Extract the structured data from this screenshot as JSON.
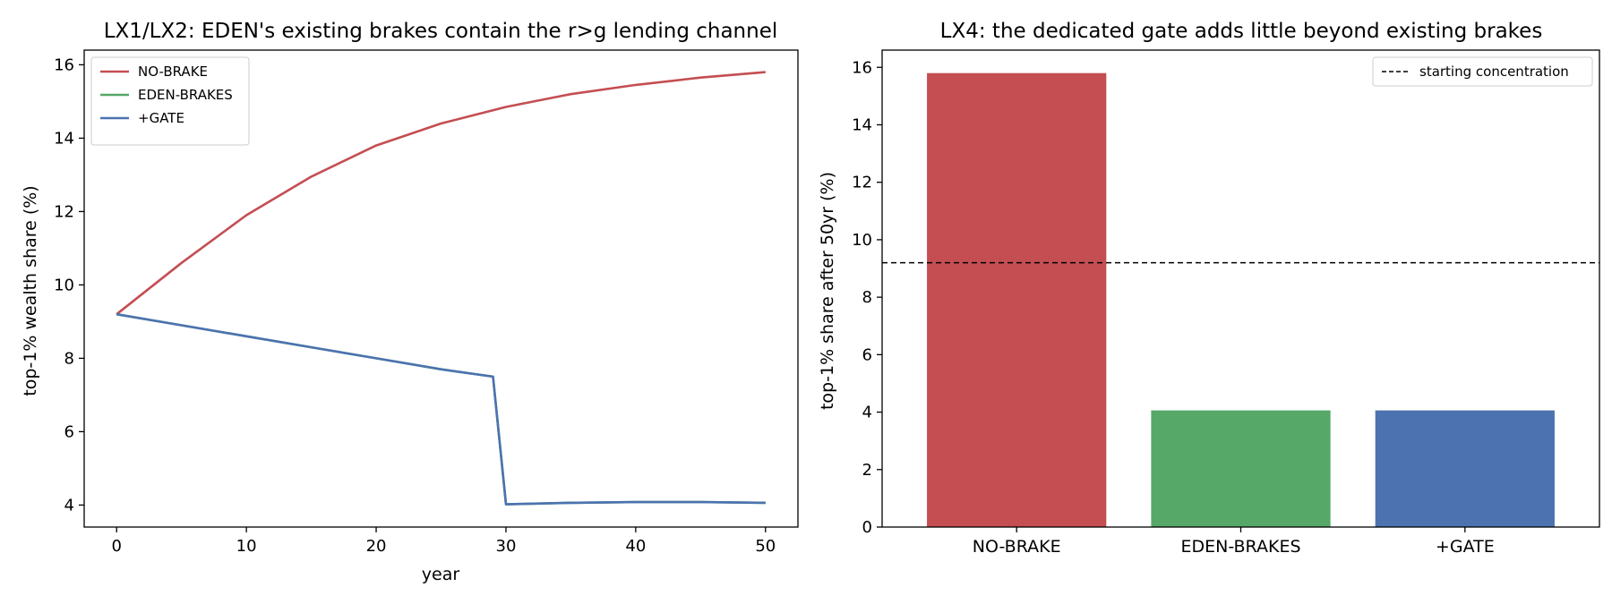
{
  "chart_data": [
    {
      "type": "line",
      "title": "LX1/LX2: EDEN's existing brakes contain the r>g lending channel",
      "xlabel": "year",
      "ylabel": "top-1% wealth share (%)",
      "xlim": [
        -2.5,
        52.5
      ],
      "ylim": [
        3.4,
        16.4
      ],
      "xticks": [
        0,
        10,
        20,
        30,
        40,
        50
      ],
      "yticks": [
        4,
        6,
        8,
        10,
        12,
        14,
        16
      ],
      "legend_position": "upper-left",
      "grid": false,
      "series": [
        {
          "name": "NO-BRAKE",
          "color": "#c44e52",
          "x": [
            0,
            5,
            10,
            15,
            20,
            25,
            30,
            35,
            40,
            45,
            50
          ],
          "y": [
            9.2,
            10.6,
            11.9,
            12.95,
            13.8,
            14.4,
            14.85,
            15.2,
            15.45,
            15.65,
            15.8
          ]
        },
        {
          "name": "EDEN-BRAKES",
          "color": "#55a868",
          "x": [
            0,
            5,
            10,
            15,
            20,
            25,
            29,
            30,
            35,
            40,
            45,
            50
          ],
          "y": [
            9.2,
            8.9,
            8.6,
            8.3,
            8.0,
            7.7,
            7.5,
            4.02,
            4.06,
            4.08,
            4.08,
            4.06
          ]
        },
        {
          "name": "+GATE",
          "color": "#4c72b0",
          "x": [
            0,
            5,
            10,
            15,
            20,
            25,
            29,
            30,
            35,
            40,
            45,
            50
          ],
          "y": [
            9.2,
            8.9,
            8.6,
            8.3,
            8.0,
            7.7,
            7.5,
            4.02,
            4.06,
            4.08,
            4.08,
            4.06
          ]
        }
      ]
    },
    {
      "type": "bar",
      "title": "LX4: the dedicated gate adds little beyond existing brakes",
      "ylabel": "top-1% share after 50yr (%)",
      "ylim": [
        0,
        16.6
      ],
      "yticks": [
        0,
        2,
        4,
        6,
        8,
        10,
        12,
        14,
        16
      ],
      "categories": [
        "NO-BRAKE",
        "EDEN-BRAKES",
        "+GATE"
      ],
      "values": [
        15.8,
        4.06,
        4.06
      ],
      "colors": [
        "#c44e52",
        "#55a868",
        "#4c72b0"
      ],
      "reference_line": {
        "label": "starting concentration",
        "value": 9.2,
        "style": "dashed"
      },
      "legend_position": "upper-right",
      "grid": false
    }
  ]
}
